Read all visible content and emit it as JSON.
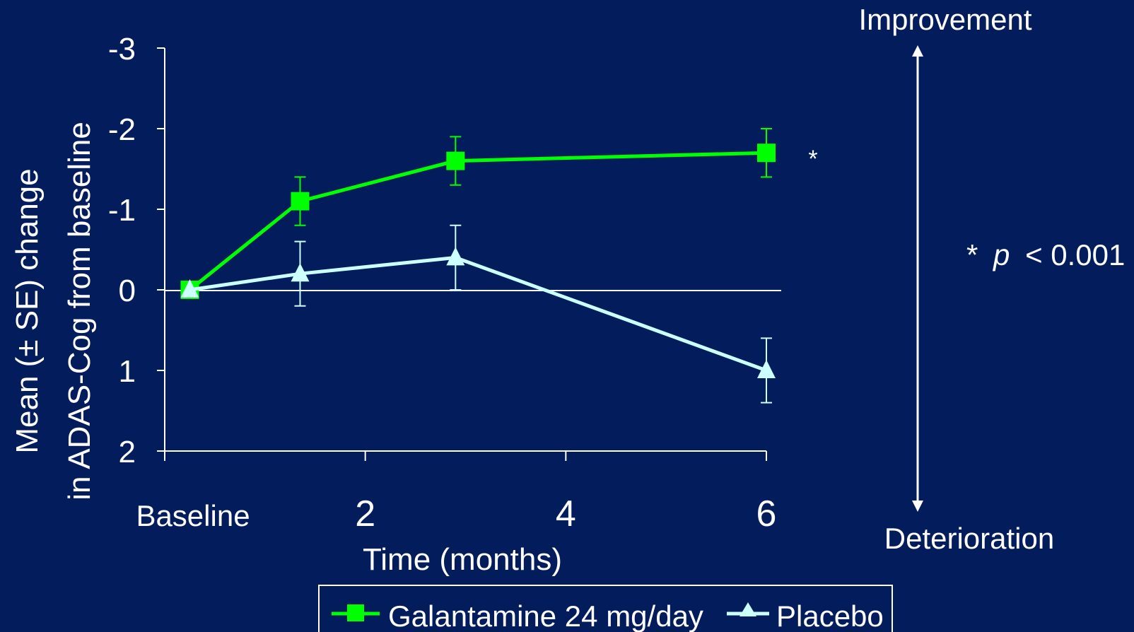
{
  "chart_data": {
    "type": "line",
    "title": "",
    "xlabel": "Time (months)",
    "ylabel_line1": "Mean (± SE) change",
    "ylabel_line2": "in ADAS-Cog from baseline",
    "xlim": [
      0,
      6
    ],
    "ylim_display": [
      -3,
      2
    ],
    "y_inverted": true,
    "x_ticks": [
      {
        "value": 0,
        "label": "Baseline"
      },
      {
        "value": 2,
        "label": "2"
      },
      {
        "value": 4,
        "label": "4"
      },
      {
        "value": 6,
        "label": "6"
      }
    ],
    "y_ticks": [
      {
        "value": -3,
        "label": "-3"
      },
      {
        "value": -2,
        "label": "-2"
      },
      {
        "value": -1,
        "label": "-1"
      },
      {
        "value": 0,
        "label": "0"
      },
      {
        "value": 1,
        "label": "1"
      },
      {
        "value": 2,
        "label": "2"
      }
    ],
    "zero_line": true,
    "series": [
      {
        "name": "Galantamine 24 mg/day",
        "color": "#00ff00",
        "marker": "square",
        "points": [
          {
            "x": 0.25,
            "y": 0.0,
            "err": 0
          },
          {
            "x": 1.35,
            "y": -1.1,
            "err": 0.3
          },
          {
            "x": 2.9,
            "y": -1.6,
            "err": 0.3
          },
          {
            "x": 6.0,
            "y": -1.7,
            "err": 0.3
          }
        ]
      },
      {
        "name": "Placebo",
        "color": "#ccffff",
        "marker": "triangle",
        "points": [
          {
            "x": 0.25,
            "y": 0.0,
            "err": 0
          },
          {
            "x": 1.35,
            "y": -0.2,
            "err": 0.4
          },
          {
            "x": 2.9,
            "y": -0.4,
            "err": 0.4
          },
          {
            "x": 6.0,
            "y": 1.0,
            "err": 0.4
          }
        ]
      }
    ],
    "annotations": {
      "star": "*",
      "pvalue_star": "*",
      "pvalue_p": "p",
      "pvalue_rest": "< 0.001",
      "improvement": "Improvement",
      "deterioration": "Deterioration"
    },
    "legend": {
      "position": "bottom",
      "entries": [
        "Galantamine 24 mg/day",
        "Placebo"
      ]
    }
  }
}
